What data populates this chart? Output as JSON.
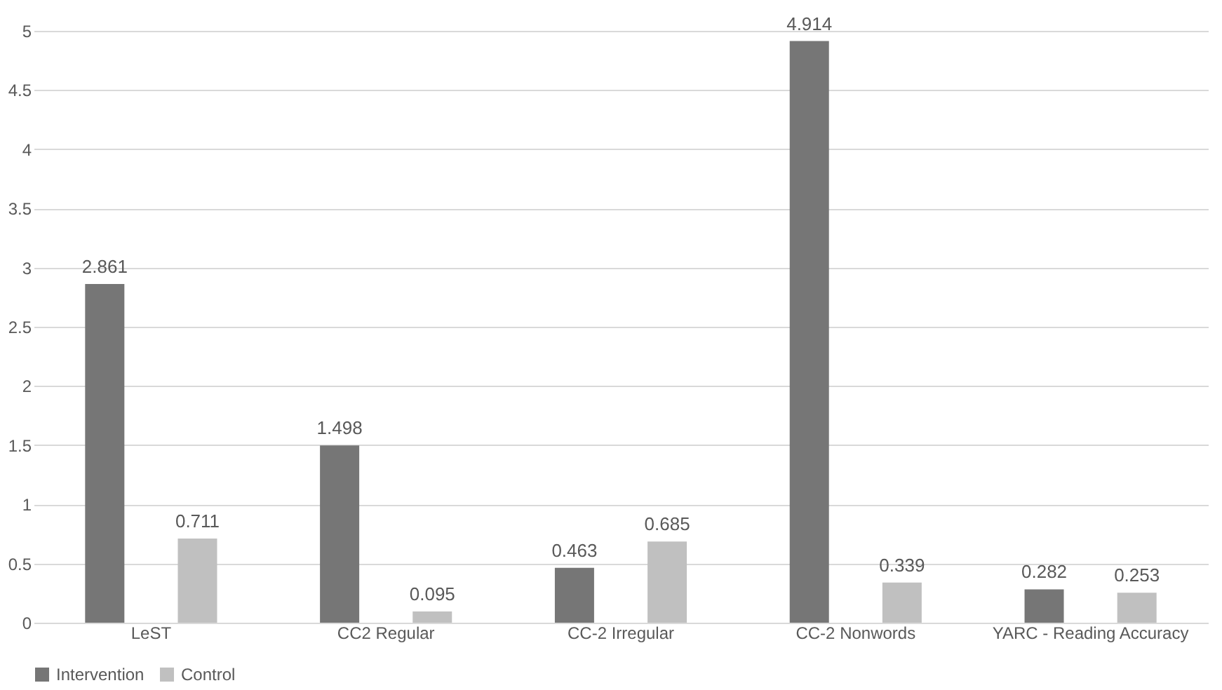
{
  "chart_data": {
    "type": "bar",
    "categories": [
      "LeST",
      "CC2 Regular",
      "CC-2 Irregular",
      "CC-2 Nonwords",
      "YARC - Reading Accuracy"
    ],
    "series": [
      {
        "name": "Intervention",
        "color": "#767676",
        "values": [
          2.861,
          1.498,
          0.463,
          4.914,
          0.282
        ]
      },
      {
        "name": "Control",
        "color": "#c0c0c0",
        "values": [
          0.711,
          0.095,
          0.685,
          0.339,
          0.253
        ]
      }
    ],
    "ylim": [
      0,
      5
    ],
    "yticks": [
      0,
      0.5,
      1,
      1.5,
      2,
      2.5,
      3,
      3.5,
      4,
      4.5,
      5
    ],
    "grid": "y",
    "legend": "bottom",
    "data_labels": true
  }
}
